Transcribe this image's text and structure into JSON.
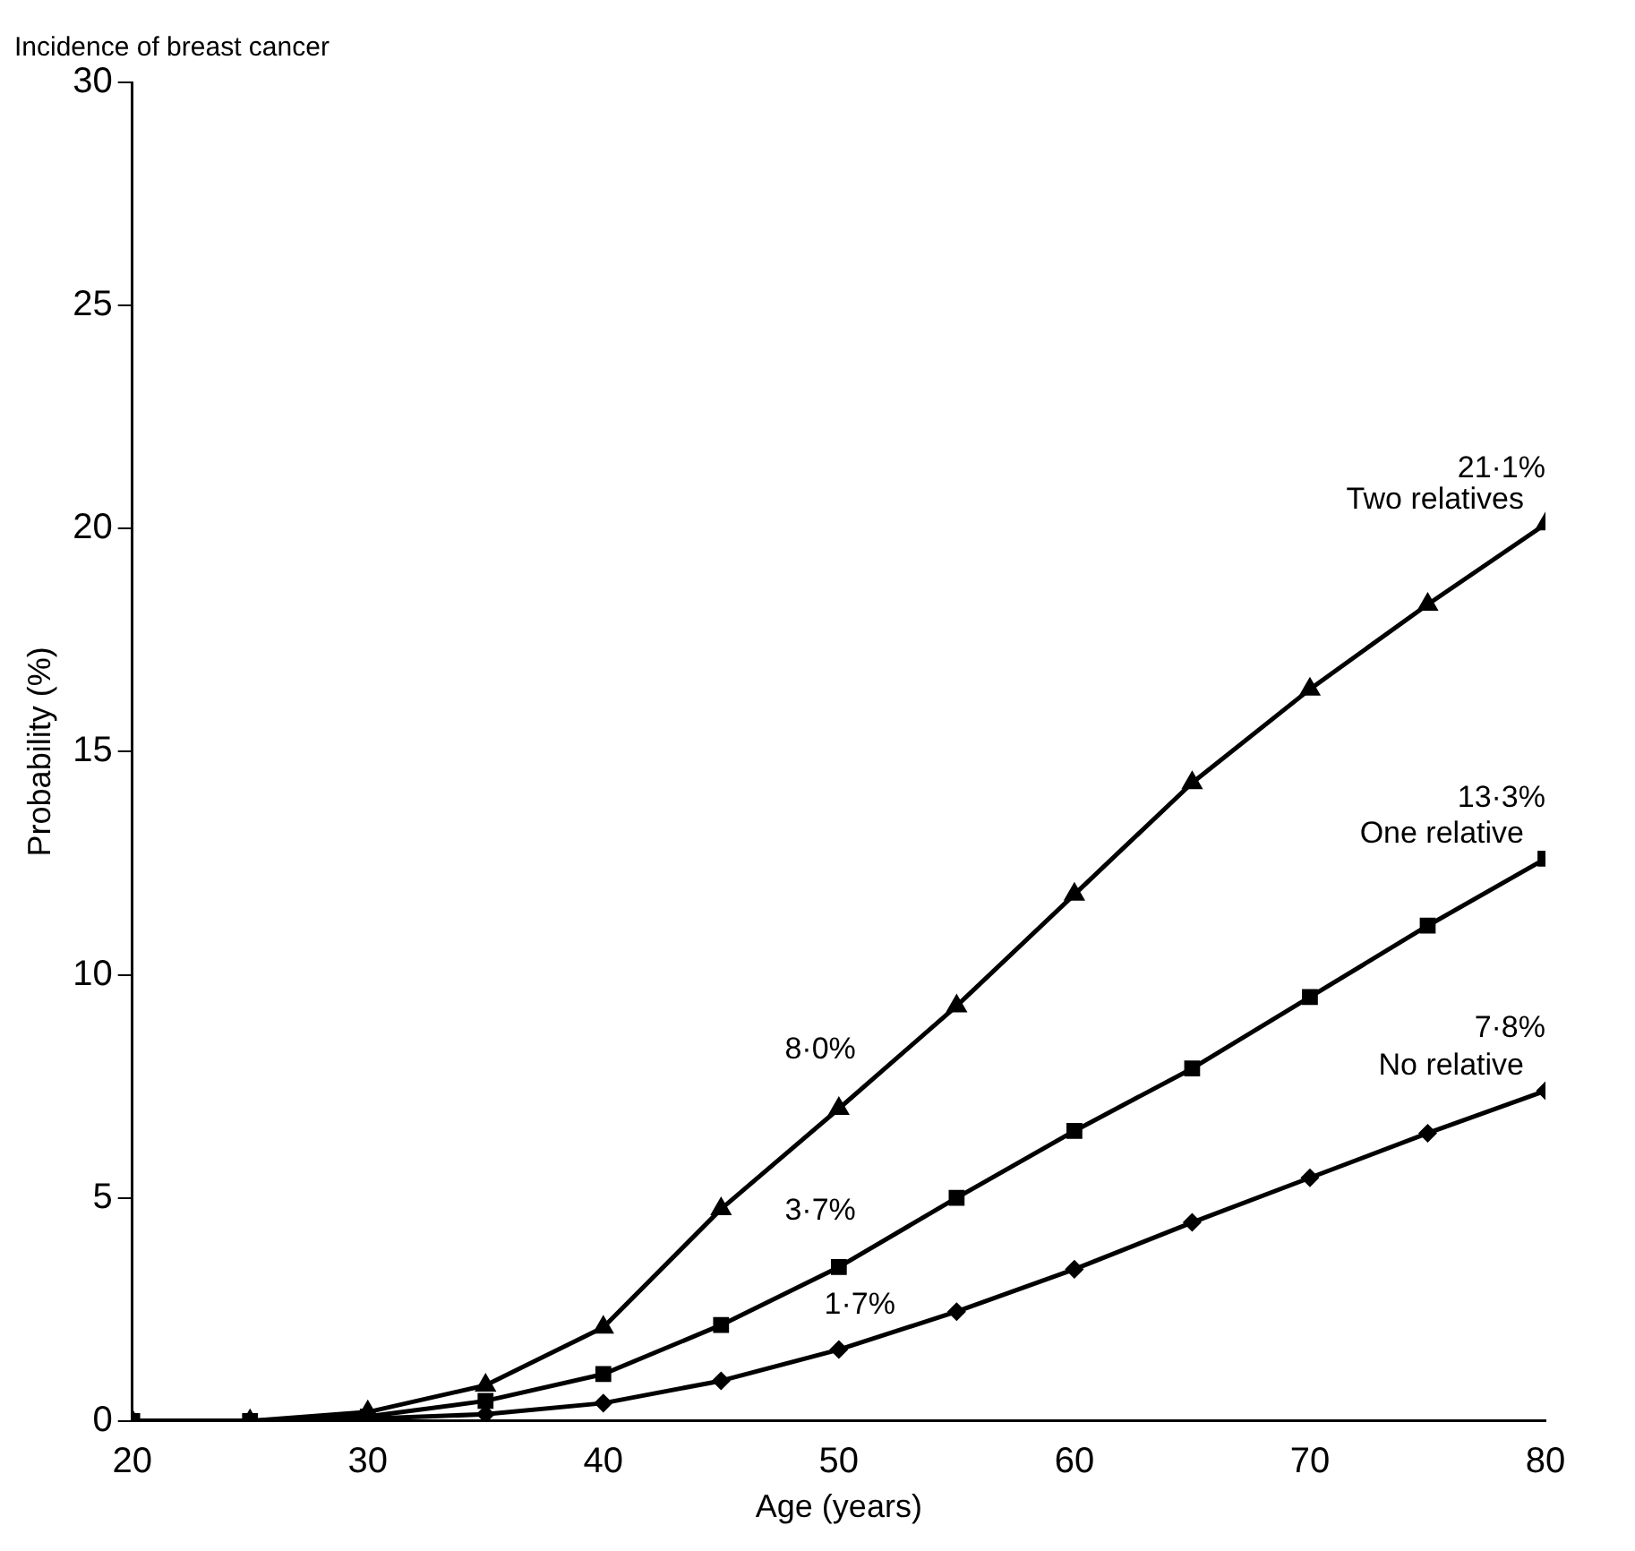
{
  "chart_data": {
    "type": "line",
    "title": "Incidence of breast cancer",
    "xlabel": "Age (years)",
    "ylabel": "Probability (%)",
    "x": [
      20,
      25,
      30,
      35,
      40,
      45,
      50,
      55,
      60,
      65,
      70,
      75,
      80
    ],
    "series": [
      {
        "name": "Two relatives",
        "color": "#000000",
        "marker": "triangle",
        "values": [
          0,
          0,
          0.2,
          0.8,
          2.1,
          4.75,
          7.0,
          9.3,
          11.8,
          14.3,
          16.4,
          18.3,
          20.1
        ]
      },
      {
        "name": "One relative",
        "color": "#000000",
        "marker": "square",
        "values": [
          0,
          0,
          0.1,
          0.45,
          1.05,
          2.15,
          3.45,
          5.0,
          6.5,
          7.9,
          9.5,
          11.1,
          12.6
        ]
      },
      {
        "name": "No relative",
        "color": "#000000",
        "marker": "diamond",
        "values": [
          0,
          0,
          0.05,
          0.15,
          0.4,
          0.9,
          1.6,
          2.45,
          3.4,
          4.45,
          5.45,
          6.45,
          7.4
        ]
      }
    ],
    "annotations": [
      "21·1%",
      "13·3%",
      "7·8%",
      "8·0%",
      "3·7%",
      "1·7%"
    ],
    "xlim": [
      20,
      80
    ],
    "xticks": [
      20,
      30,
      40,
      50,
      60,
      70,
      80
    ],
    "ylim": [
      0,
      30
    ],
    "yticks": [
      0,
      5,
      10,
      15,
      20,
      25,
      30
    ],
    "grid": false,
    "legend": false,
    "line_style": "solid"
  }
}
